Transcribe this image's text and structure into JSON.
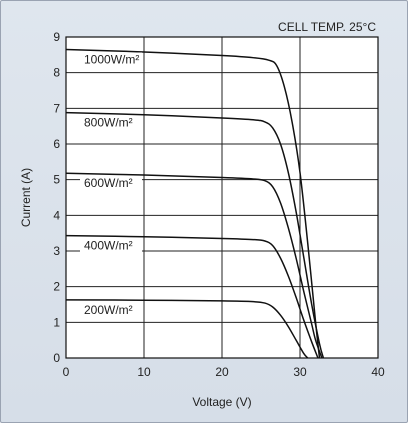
{
  "chart_data": {
    "type": "line",
    "title": "",
    "annotation": "CELL TEMP. 25°C",
    "xlabel": "Voltage (V)",
    "ylabel": "Current (A)",
    "xlim": [
      0,
      40
    ],
    "ylim": [
      0,
      9
    ],
    "xticks": [
      "0",
      "10",
      "20",
      "30",
      "40"
    ],
    "yticks": [
      "0",
      "1",
      "2",
      "3",
      "4",
      "5",
      "6",
      "7",
      "8",
      "9"
    ],
    "grid": true,
    "series": [
      {
        "name": "1000W/m²",
        "x": [
          0,
          10,
          20,
          24,
          26,
          27,
          28,
          29,
          30,
          31,
          32,
          32.5
        ],
        "y": [
          8.65,
          8.58,
          8.48,
          8.42,
          8.35,
          8.2,
          7.6,
          6.6,
          5.2,
          3.2,
          1.0,
          0
        ]
      },
      {
        "name": "800W/m²",
        "x": [
          0,
          10,
          20,
          24,
          25.5,
          26.5,
          27.5,
          28.5,
          29.5,
          30.5,
          31.5,
          32.5,
          33
        ],
        "y": [
          6.88,
          6.82,
          6.73,
          6.68,
          6.62,
          6.45,
          6.0,
          5.2,
          4.1,
          2.8,
          1.5,
          0.4,
          0
        ]
      },
      {
        "name": "600W/m²",
        "x": [
          0,
          10,
          20,
          24,
          25.5,
          26.5,
          27.5,
          28.5,
          29.5,
          30.5,
          31.5,
          32,
          32.8
        ],
        "y": [
          5.18,
          5.13,
          5.06,
          5.02,
          4.97,
          4.8,
          4.35,
          3.65,
          2.8,
          1.85,
          0.95,
          0.5,
          0
        ]
      },
      {
        "name": "400W/m²",
        "x": [
          0,
          10,
          20,
          24,
          25.5,
          26.5,
          27.5,
          28.5,
          29.5,
          30.5,
          31.5,
          32.3
        ],
        "y": [
          3.43,
          3.4,
          3.35,
          3.32,
          3.28,
          3.15,
          2.8,
          2.3,
          1.7,
          1.05,
          0.45,
          0
        ]
      },
      {
        "name": "200W/m²",
        "x": [
          0,
          10,
          20,
          24,
          25.5,
          26.5,
          27.5,
          28.5,
          29.5,
          30.5,
          31
        ],
        "y": [
          1.63,
          1.62,
          1.6,
          1.58,
          1.54,
          1.43,
          1.2,
          0.88,
          0.5,
          0.12,
          0
        ]
      }
    ]
  }
}
